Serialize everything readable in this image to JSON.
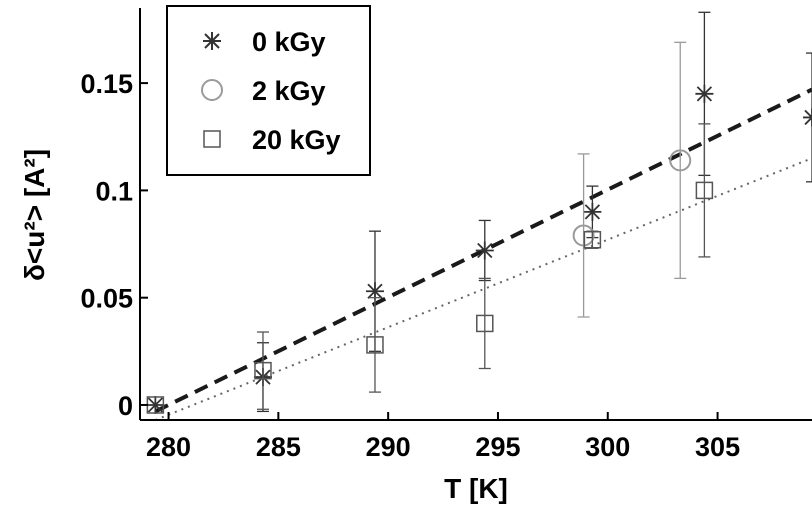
{
  "chart_data": {
    "type": "scatter",
    "xlabel": "T [K]",
    "ylabel": "δ<u²> [A²]",
    "xlim": [
      278.7,
      309.3
    ],
    "ylim": [
      -0.007,
      0.185
    ],
    "x_ticks": [
      {
        "value": 280,
        "label": "280"
      },
      {
        "value": 285,
        "label": "285"
      },
      {
        "value": 290,
        "label": "290"
      },
      {
        "value": 295,
        "label": "295"
      },
      {
        "value": 300,
        "label": "300"
      },
      {
        "value": 305,
        "label": "305"
      }
    ],
    "y_ticks": [
      {
        "value": 0,
        "label": "0"
      },
      {
        "value": 0.05,
        "label": "0.05"
      },
      {
        "value": 0.1,
        "label": "0.1"
      },
      {
        "value": 0.15,
        "label": "0.15"
      }
    ],
    "legend_position": "top-left",
    "series": [
      {
        "name": "0 kGy",
        "marker": "asterisk",
        "color": "#333333",
        "points": [
          {
            "x": 279.4,
            "y": 0.0,
            "err": 0.0
          },
          {
            "x": 284.3,
            "y": 0.013,
            "err": 0.016
          },
          {
            "x": 289.4,
            "y": 0.053,
            "err": 0.028
          },
          {
            "x": 294.4,
            "y": 0.072,
            "err": 0.014
          },
          {
            "x": 299.3,
            "y": 0.09,
            "err": 0.012
          },
          {
            "x": 304.4,
            "y": 0.145,
            "err": 0.038
          },
          {
            "x": 309.3,
            "y": 0.134,
            "err": 0.03
          }
        ]
      },
      {
        "name": "2 kGy",
        "marker": "circle",
        "color": "#9a9a9a",
        "points": [
          {
            "x": 298.9,
            "y": 0.079,
            "err": 0.038
          },
          {
            "x": 303.3,
            "y": 0.114,
            "err": 0.055
          }
        ]
      },
      {
        "name": "20 kGy",
        "marker": "square",
        "color": "#555555",
        "points": [
          {
            "x": 279.4,
            "y": 0.0,
            "err": 0.0
          },
          {
            "x": 284.3,
            "y": 0.016,
            "err": 0.018
          },
          {
            "x": 289.4,
            "y": 0.028,
            "err": 0.022
          },
          {
            "x": 294.4,
            "y": 0.038,
            "err": 0.021
          },
          {
            "x": 299.3,
            "y": 0.077,
            "err": 0.004
          },
          {
            "x": 304.4,
            "y": 0.1,
            "err": 0.031
          }
        ]
      }
    ],
    "fit_lines": [
      {
        "style": "dashed",
        "color": "#1a1a1a",
        "x": [
          279.4,
          309.3
        ],
        "y": [
          -0.003,
          0.147
        ]
      },
      {
        "style": "dotted",
        "color": "#666666",
        "x": [
          279.4,
          309.3
        ],
        "y": [
          -0.007,
          0.115
        ]
      }
    ]
  }
}
